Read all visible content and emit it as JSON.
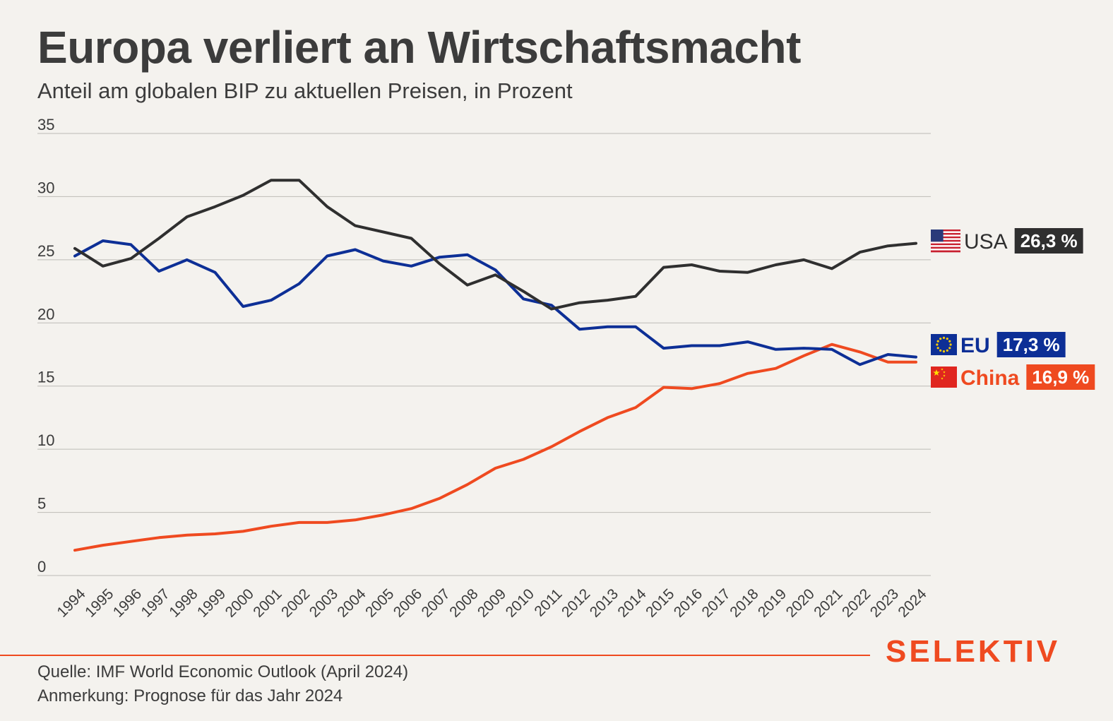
{
  "header": {
    "title": "Europa verliert an Wirtschaftsmacht",
    "subtitle": "Anteil am globalen BIP zu aktuellen Preisen, in Prozent"
  },
  "footer": {
    "source": "Quelle: IMF World Economic Outlook (April 2024)",
    "note": "Anmerkung: Prognose für das Jahr 2024",
    "logo": "SELEKTIV"
  },
  "colors": {
    "background": "#f4f2ee",
    "usa": "#2f2f2f",
    "eu": "#0d2f96",
    "china": "#ef4a20",
    "grid": "#bdbbb6",
    "text": "#3c3c3c"
  },
  "chart_data": {
    "type": "line",
    "title": "Europa verliert an Wirtschaftsmacht",
    "subtitle": "Anteil am globalen BIP zu aktuellen Preisen, in Prozent",
    "xlabel": "",
    "ylabel": "",
    "ylim": [
      0,
      35
    ],
    "yticks": [
      0,
      5,
      10,
      15,
      20,
      25,
      30,
      35
    ],
    "grid": true,
    "legend": "right-end-labels",
    "x": [
      "1994",
      "1995",
      "1996",
      "1997",
      "1998",
      "1999",
      "2000",
      "2001",
      "2002",
      "2003",
      "2004",
      "2005",
      "2006",
      "2007",
      "2008",
      "2009",
      "2010",
      "2011",
      "2012",
      "2013",
      "2014",
      "2015",
      "2016",
      "2017",
      "2018",
      "2019",
      "2020",
      "2021",
      "2022",
      "2023",
      "2024"
    ],
    "series": [
      {
        "name": "USA",
        "label": "26,3 %",
        "flag": "us-flag-icon",
        "color": "#2f2f2f",
        "values": [
          25.9,
          24.5,
          25.1,
          26.7,
          28.4,
          29.2,
          30.1,
          31.3,
          31.3,
          29.2,
          27.7,
          27.2,
          26.7,
          24.7,
          23.0,
          23.8,
          22.5,
          21.1,
          21.6,
          21.8,
          22.1,
          24.4,
          24.6,
          24.1,
          24.0,
          24.6,
          25.0,
          24.3,
          25.6,
          26.1,
          26.3
        ]
      },
      {
        "name": "EU",
        "label": "17,3 %",
        "flag": "eu-flag-icon",
        "color": "#0d2f96",
        "values": [
          25.3,
          26.5,
          26.2,
          24.1,
          25.0,
          24.0,
          21.3,
          21.8,
          23.1,
          25.3,
          25.8,
          24.9,
          24.5,
          25.2,
          25.4,
          24.2,
          21.9,
          21.4,
          19.5,
          19.7,
          19.7,
          18.0,
          18.2,
          18.2,
          18.5,
          17.9,
          18.0,
          17.9,
          16.7,
          17.5,
          17.3
        ]
      },
      {
        "name": "China",
        "label": "16,9 %",
        "flag": "cn-flag-icon",
        "color": "#ef4a20",
        "values": [
          2.0,
          2.4,
          2.7,
          3.0,
          3.2,
          3.3,
          3.5,
          3.9,
          4.2,
          4.2,
          4.4,
          4.8,
          5.3,
          6.1,
          7.2,
          8.5,
          9.2,
          10.2,
          11.4,
          12.5,
          13.3,
          14.9,
          14.8,
          15.2,
          16.0,
          16.4,
          17.4,
          18.3,
          17.7,
          16.9,
          16.9
        ]
      }
    ]
  }
}
